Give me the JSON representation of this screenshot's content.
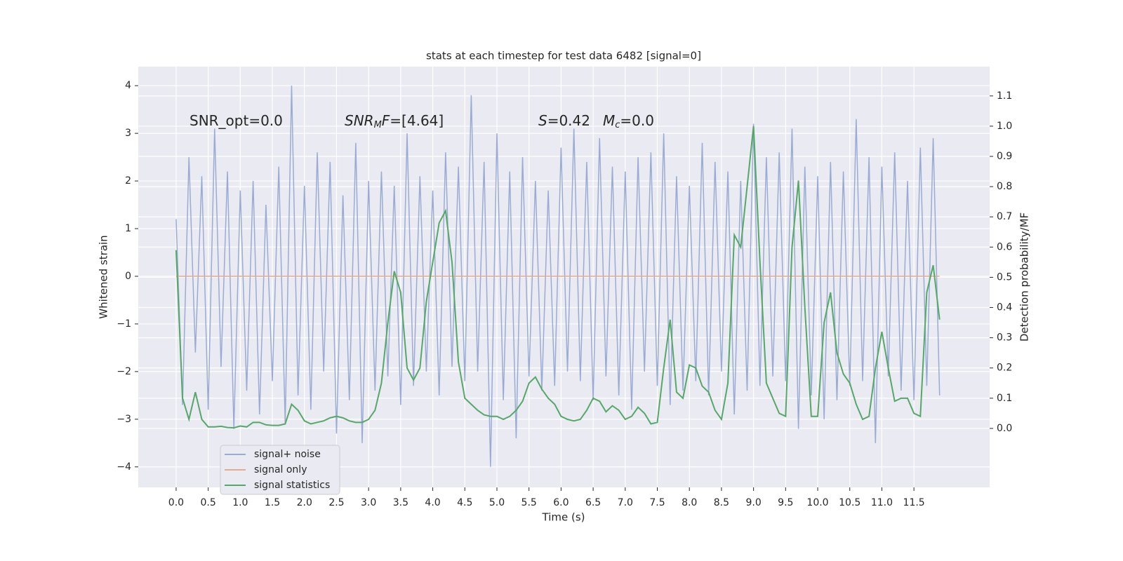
{
  "chart_data": {
    "type": "line",
    "title": "stats at each timestep for test data 6482 [signal=0]",
    "xlabel": "Time (s)",
    "ylabel": "Whitened strain",
    "y2label": "Detection probability/MF",
    "annotations": [
      [
        "SNR_opt=0.0"
      ],
      [
        "SNR",
        "M",
        "F",
        "=[4.64]"
      ],
      [
        "S",
        "=0.42"
      ],
      [
        "M",
        "c",
        "=0.0"
      ]
    ],
    "legend": "lower left",
    "grid": true,
    "background": "#eaeaf2",
    "xlim": [
      -0.59,
      12.68
    ],
    "ylim": [
      -4.43,
      4.4
    ],
    "y2lim": [
      -0.195,
      1.197
    ],
    "xticks": [
      {
        "value": 0,
        "label": "0.0"
      },
      {
        "value": 0.5,
        "label": "0.5"
      },
      {
        "value": 1,
        "label": "1.0"
      },
      {
        "value": 1.5,
        "label": "1.5"
      },
      {
        "value": 2,
        "label": "2.0"
      },
      {
        "value": 2.5,
        "label": "2.5"
      },
      {
        "value": 3,
        "label": "3.0"
      },
      {
        "value": 3.5,
        "label": "3.5"
      },
      {
        "value": 4,
        "label": "4.0"
      },
      {
        "value": 4.5,
        "label": "4.5"
      },
      {
        "value": 5,
        "label": "5.0"
      },
      {
        "value": 5.5,
        "label": "5.5"
      },
      {
        "value": 6,
        "label": "6.0"
      },
      {
        "value": 6.5,
        "label": "6.5"
      },
      {
        "value": 7,
        "label": "7.0"
      },
      {
        "value": 7.5,
        "label": "7.5"
      },
      {
        "value": 8,
        "label": "8.0"
      },
      {
        "value": 8.5,
        "label": "8.5"
      },
      {
        "value": 9,
        "label": "9.0"
      },
      {
        "value": 9.5,
        "label": "9.5"
      },
      {
        "value": 10,
        "label": "10.0"
      },
      {
        "value": 10.5,
        "label": "10.5"
      },
      {
        "value": 11,
        "label": "11.0"
      },
      {
        "value": 11.5,
        "label": "11.5"
      }
    ],
    "yticks": [
      {
        "value": -4,
        "label": "−4"
      },
      {
        "value": -3,
        "label": "−3"
      },
      {
        "value": -2,
        "label": "−2"
      },
      {
        "value": -1,
        "label": "−1"
      },
      0,
      1,
      2,
      3,
      4
    ],
    "y2ticks": [
      {
        "value": 0,
        "label": "0.0"
      },
      {
        "value": 0.1,
        "label": "0.1"
      },
      {
        "value": 0.2,
        "label": "0.2"
      },
      {
        "value": 0.3,
        "label": "0.3"
      },
      {
        "value": 0.4,
        "label": "0.4"
      },
      {
        "value": 0.5,
        "label": "0.5"
      },
      {
        "value": 0.6,
        "label": "0.6"
      },
      {
        "value": 0.7,
        "label": "0.7"
      },
      {
        "value": 0.8,
        "label": "0.8"
      },
      {
        "value": 0.9,
        "label": "0.9"
      },
      {
        "value": 1,
        "label": "1.0"
      },
      {
        "value": 1.1,
        "label": "1.1"
      }
    ],
    "x": [
      0,
      0.1,
      0.2,
      0.3,
      0.4,
      0.5,
      0.6,
      0.7,
      0.8,
      0.9,
      1,
      1.1,
      1.2,
      1.3,
      1.4,
      1.5,
      1.6,
      1.7,
      1.8,
      1.9,
      2,
      2.1,
      2.2,
      2.3,
      2.4,
      2.5,
      2.6,
      2.7,
      2.8,
      2.9,
      3,
      3.1,
      3.2,
      3.3,
      3.4,
      3.5,
      3.6,
      3.7,
      3.8,
      3.9,
      4,
      4.1,
      4.2,
      4.3,
      4.4,
      4.5,
      4.6,
      4.7,
      4.8,
      4.9,
      5,
      5.1,
      5.2,
      5.3,
      5.4,
      5.5,
      5.6,
      5.7,
      5.8,
      5.9,
      6,
      6.1,
      6.2,
      6.3,
      6.4,
      6.5,
      6.6,
      6.7,
      6.8,
      6.9,
      7,
      7.1,
      7.2,
      7.3,
      7.4,
      7.5,
      7.6,
      7.7,
      7.8,
      7.9,
      8,
      8.1,
      8.2,
      8.3,
      8.4,
      8.5,
      8.6,
      8.7,
      8.8,
      8.9,
      9,
      9.1,
      9.2,
      9.3,
      9.4,
      9.5,
      9.6,
      9.7,
      9.8,
      9.9,
      10,
      10.1,
      10.2,
      10.3,
      10.4,
      10.5,
      10.6,
      10.7,
      10.8,
      10.9,
      11,
      11.1,
      11.2,
      11.3,
      11.4,
      11.5,
      11.6,
      11.7,
      11.8,
      11.9
    ],
    "series": [
      {
        "name": "signal+ noise",
        "color": "#9aacd3",
        "values": [
          1.2,
          -2.7,
          2.5,
          -1.6,
          2.1,
          -2.8,
          3.1,
          -1.9,
          2.2,
          -3.2,
          1.8,
          -2.4,
          2.0,
          -2.9,
          1.5,
          -2.2,
          2.3,
          -3.1,
          4.0,
          -2.5,
          1.9,
          -2.8,
          2.6,
          -2.0,
          2.4,
          -3.3,
          1.7,
          -2.6,
          2.8,
          -3.5,
          2.0,
          -2.4,
          2.2,
          -2.1,
          1.9,
          -2.7,
          3.0,
          -2.3,
          2.1,
          -2.0,
          1.8,
          -2.5,
          2.6,
          -1.9,
          2.3,
          -2.2,
          3.8,
          -2.0,
          2.4,
          -4.0,
          3.0,
          -2.6,
          2.2,
          -3.4,
          2.5,
          -2.1,
          2.0,
          -2.4,
          1.8,
          -2.3,
          2.7,
          -2.0,
          3.1,
          -2.2,
          2.4,
          -2.6,
          2.9,
          -2.1,
          2.3,
          -2.5,
          2.2,
          -2.8,
          2.5,
          -2.0,
          2.6,
          -2.3,
          3.0,
          -2.7,
          2.1,
          -2.4,
          1.9,
          -2.2,
          2.8,
          -2.5,
          2.4,
          -2.0,
          2.2,
          -2.9,
          2.0,
          -2.4,
          3.2,
          -2.3,
          2.5,
          -2.1,
          2.6,
          -2.2,
          3.1,
          -3.2,
          2.3,
          -2.5,
          2.1,
          -3.0,
          2.4,
          -2.6,
          2.2,
          -2.3,
          3.3,
          -2.2,
          2.5,
          -3.5,
          2.3,
          -2.1,
          2.6,
          -2.4,
          2.0,
          -2.6,
          2.7,
          -2.3,
          2.9,
          -2.5
        ]
      },
      {
        "name": "signal only",
        "color": "#eba88a",
        "values": [
          0,
          0,
          0,
          0,
          0,
          0,
          0,
          0,
          0,
          0,
          0,
          0,
          0,
          0,
          0,
          0,
          0,
          0,
          0,
          0,
          0,
          0,
          0,
          0,
          0,
          0,
          0,
          0,
          0,
          0,
          0,
          0,
          0,
          0,
          0,
          0,
          0,
          0,
          0,
          0,
          0,
          0,
          0,
          0,
          0,
          0,
          0,
          0,
          0,
          0,
          0,
          0,
          0,
          0,
          0,
          0,
          0,
          0,
          0,
          0,
          0,
          0,
          0,
          0,
          0,
          0,
          0,
          0,
          0,
          0,
          0,
          0,
          0,
          0,
          0,
          0,
          0,
          0,
          0,
          0,
          0,
          0,
          0,
          0,
          0,
          0,
          0,
          0,
          0,
          0,
          0,
          0,
          0,
          0,
          0,
          0,
          0,
          0,
          0,
          0,
          0,
          0,
          0,
          0,
          0,
          0,
          0,
          0,
          0,
          0,
          0,
          0,
          0,
          0,
          0,
          0,
          0,
          0,
          0,
          0
        ]
      },
      {
        "name": "signal statistics",
        "color": "#55a868",
        "axis": "y2",
        "values": [
          0.59,
          0.1,
          0.03,
          0.12,
          0.03,
          0.005,
          0.005,
          0.007,
          0.003,
          0.002,
          0.008,
          0.005,
          0.02,
          0.02,
          0.012,
          0.01,
          0.01,
          0.015,
          0.08,
          0.06,
          0.025,
          0.015,
          0.02,
          0.025,
          0.035,
          0.04,
          0.035,
          0.025,
          0.02,
          0.02,
          0.03,
          0.06,
          0.15,
          0.35,
          0.52,
          0.45,
          0.2,
          0.16,
          0.2,
          0.42,
          0.55,
          0.68,
          0.72,
          0.55,
          0.22,
          0.1,
          0.08,
          0.06,
          0.045,
          0.04,
          0.04,
          0.03,
          0.04,
          0.06,
          0.09,
          0.15,
          0.17,
          0.13,
          0.1,
          0.08,
          0.04,
          0.03,
          0.025,
          0.03,
          0.06,
          0.1,
          0.09,
          0.055,
          0.075,
          0.06,
          0.03,
          0.04,
          0.07,
          0.05,
          0.015,
          0.02,
          0.2,
          0.36,
          0.12,
          0.1,
          0.21,
          0.2,
          0.14,
          0.12,
          0.06,
          0.03,
          0.15,
          0.64,
          0.6,
          0.8,
          1.0,
          0.55,
          0.15,
          0.1,
          0.05,
          0.04,
          0.6,
          0.82,
          0.4,
          0.04,
          0.04,
          0.35,
          0.45,
          0.25,
          0.18,
          0.15,
          0.08,
          0.03,
          0.04,
          0.2,
          0.32,
          0.2,
          0.09,
          0.1,
          0.1,
          0.05,
          0.04,
          0.45,
          0.54,
          0.36
        ]
      }
    ]
  }
}
